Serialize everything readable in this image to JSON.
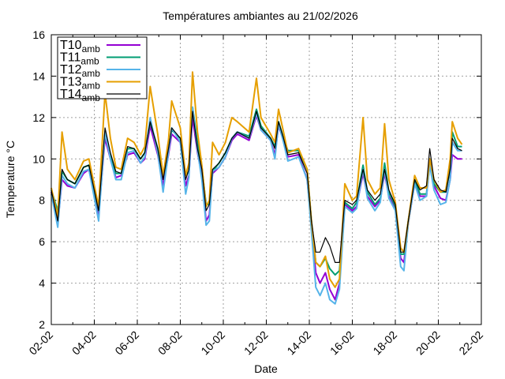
{
  "chart_data": {
    "type": "line",
    "title": "Températures ambiantes au 21/02/2026",
    "xlabel": "Date",
    "ylabel": "Temperature °C",
    "ylim": [
      2,
      16
    ],
    "yticks": [
      "2",
      "4",
      "6",
      "8",
      "10",
      "12",
      "14",
      "16"
    ],
    "xlim_days": [
      0,
      20
    ],
    "xticks": [
      "02-02",
      "04-02",
      "06-02",
      "08-02",
      "10-02",
      "12-02",
      "14-02",
      "16-02",
      "18-02",
      "20-02",
      "22-02"
    ],
    "grid": true,
    "legend_position": "top-left",
    "x_days_since_02_02": [
      0,
      0.3,
      0.5,
      0.75,
      1.1,
      1.5,
      1.75,
      2.2,
      2.5,
      2.75,
      3.0,
      3.25,
      3.55,
      3.85,
      4.15,
      4.35,
      4.6,
      4.95,
      5.2,
      5.45,
      5.6,
      6.0,
      6.25,
      6.4,
      6.57,
      6.8,
      7.0,
      7.2,
      7.35,
      7.5,
      7.8,
      8.1,
      8.4,
      8.65,
      9.2,
      9.54,
      9.75,
      10.2,
      10.4,
      10.57,
      10.8,
      11.0,
      11.5,
      11.9,
      12.1,
      12.3,
      12.5,
      12.75,
      12.95,
      13.2,
      13.4,
      13.65,
      14.0,
      14.2,
      14.5,
      14.7,
      15.05,
      15.3,
      15.5,
      15.7,
      16.0,
      16.25,
      16.4,
      16.6,
      16.9,
      17.15,
      17.45,
      17.6,
      17.8,
      18.1,
      18.35,
      18.55,
      18.65,
      18.9,
      19.1
    ],
    "series": [
      {
        "name": "T10",
        "sub": "amb",
        "color": "#9400d3",
        "values": [
          8.4,
          6.9,
          9.0,
          8.7,
          8.6,
          9.3,
          9.5,
          7.3,
          11.0,
          10.0,
          9.1,
          9.2,
          10.2,
          10.3,
          9.8,
          10.0,
          11.6,
          10.2,
          8.7,
          10.2,
          11.2,
          10.8,
          8.7,
          9.2,
          12.0,
          10.3,
          9.2,
          7.0,
          7.3,
          9.3,
          9.6,
          10.1,
          10.9,
          11.2,
          10.9,
          12.1,
          11.4,
          10.9,
          10.2,
          11.6,
          10.9,
          10.1,
          10.2,
          9.0,
          6.8,
          4.5,
          4.0,
          4.5,
          3.7,
          3.2,
          4.0,
          7.8,
          7.5,
          7.7,
          9.3,
          8.2,
          7.7,
          8.0,
          9.3,
          8.2,
          7.6,
          5.2,
          5.0,
          6.9,
          8.8,
          8.2,
          8.2,
          9.8,
          8.7,
          8.1,
          8.0,
          9.0,
          10.2,
          10.0,
          10.0
        ]
      },
      {
        "name": "T11",
        "sub": "amb",
        "color": "#009e73",
        "values": [
          8.5,
          7.5,
          9.4,
          9.0,
          8.8,
          9.6,
          9.7,
          7.5,
          11.2,
          10.2,
          9.3,
          9.3,
          10.5,
          10.5,
          10.0,
          10.3,
          11.8,
          10.5,
          9.1,
          10.4,
          11.4,
          11.0,
          9.2,
          9.4,
          12.5,
          10.8,
          9.6,
          7.8,
          7.8,
          9.4,
          9.8,
          10.3,
          11.0,
          11.3,
          11.1,
          12.4,
          11.6,
          11.0,
          10.6,
          11.8,
          11.0,
          10.4,
          10.4,
          9.5,
          7.0,
          5.0,
          4.8,
          5.2,
          4.7,
          4.4,
          4.6,
          7.9,
          7.6,
          7.9,
          9.7,
          8.4,
          7.8,
          8.1,
          9.8,
          8.4,
          7.7,
          5.4,
          5.4,
          7.0,
          9.0,
          8.3,
          8.3,
          10.0,
          8.8,
          8.4,
          8.4,
          9.5,
          11.3,
          10.6,
          10.6
        ]
      },
      {
        "name": "T12",
        "sub": "amb",
        "color": "#56b4e9",
        "values": [
          8.3,
          6.7,
          9.2,
          8.8,
          8.6,
          9.4,
          9.5,
          7.0,
          11.3,
          10.0,
          9.0,
          9.0,
          10.3,
          10.4,
          9.8,
          10.1,
          12.0,
          10.3,
          8.4,
          10.3,
          11.5,
          10.8,
          8.3,
          9.1,
          12.5,
          10.4,
          9.0,
          6.8,
          7.0,
          9.4,
          9.6,
          10.1,
          11.0,
          11.3,
          11.0,
          12.2,
          11.4,
          10.9,
          10.0,
          11.7,
          10.8,
          9.9,
          10.1,
          9.0,
          6.5,
          3.8,
          3.4,
          4.0,
          3.2,
          3.0,
          3.7,
          7.7,
          7.4,
          7.6,
          9.5,
          8.1,
          7.5,
          7.9,
          9.5,
          8.1,
          7.5,
          4.8,
          4.6,
          6.9,
          8.8,
          8.0,
          8.2,
          9.7,
          8.5,
          7.8,
          7.9,
          9.0,
          10.8,
          10.4,
          10.4
        ]
      },
      {
        "name": "T13",
        "sub": "amb",
        "color": "#e69f00",
        "values": [
          8.6,
          7.2,
          11.3,
          9.5,
          9.0,
          9.9,
          10.0,
          7.7,
          13.2,
          11.0,
          9.6,
          9.5,
          11.0,
          10.8,
          10.2,
          10.6,
          13.5,
          11.2,
          9.2,
          10.9,
          12.8,
          11.5,
          9.2,
          9.8,
          14.2,
          11.3,
          9.7,
          7.7,
          8.0,
          10.8,
          10.2,
          10.8,
          12.0,
          11.8,
          11.3,
          13.9,
          12.0,
          11.2,
          10.8,
          12.4,
          11.3,
          10.3,
          10.5,
          9.5,
          7.0,
          5.0,
          4.8,
          5.3,
          4.2,
          3.8,
          4.2,
          8.8,
          8.0,
          8.2,
          12.0,
          9.0,
          8.3,
          8.6,
          11.7,
          9.0,
          7.9,
          5.7,
          5.5,
          7.0,
          9.2,
          8.6,
          8.6,
          10.0,
          9.0,
          8.4,
          8.5,
          10.0,
          11.8,
          11.0,
          10.7
        ]
      },
      {
        "name": "T14",
        "sub": "amb",
        "color": "#000000",
        "values": [
          8.5,
          7.0,
          9.5,
          9.0,
          8.8,
          9.6,
          9.7,
          7.5,
          11.5,
          10.3,
          9.4,
          9.3,
          10.6,
          10.5,
          10.0,
          10.3,
          11.8,
          10.5,
          9.0,
          10.5,
          11.5,
          11.0,
          9.0,
          9.5,
          12.3,
          10.5,
          9.5,
          7.5,
          7.8,
          9.5,
          9.8,
          10.3,
          11.0,
          11.3,
          11.0,
          12.3,
          11.5,
          11.0,
          10.5,
          11.8,
          11.0,
          10.2,
          10.3,
          9.3,
          7.0,
          5.5,
          5.5,
          6.2,
          5.8,
          5.0,
          5.0,
          8.0,
          7.8,
          8.0,
          9.5,
          8.5,
          8.0,
          8.3,
          9.5,
          8.5,
          7.8,
          5.5,
          5.5,
          7.0,
          9.0,
          8.5,
          8.7,
          10.5,
          9.0,
          8.5,
          8.4,
          9.5,
          11.0,
          10.5,
          10.4
        ]
      }
    ]
  }
}
